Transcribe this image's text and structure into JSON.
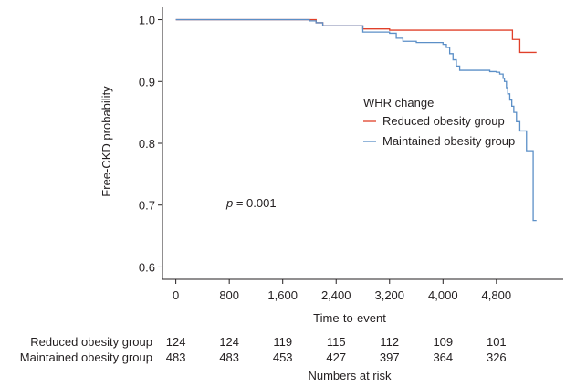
{
  "chart_data": {
    "type": "line",
    "title": "",
    "xlabel": "Time-to-event",
    "ylabel": "Free-CKD probability",
    "xlim": [
      -200,
      5800
    ],
    "ylim": [
      0.58,
      1.02
    ],
    "xticks": [
      0,
      800,
      1600,
      2400,
      3200,
      4000,
      4800
    ],
    "xtick_labels": [
      "0",
      "800",
      "1,600",
      "2,400",
      "3,200",
      "4,000",
      "4,800"
    ],
    "yticks": [
      1.0,
      0.9,
      0.8,
      0.7,
      0.6
    ],
    "ytick_labels": [
      "1.0",
      "0.9",
      "0.8",
      "0.7",
      "0.6"
    ],
    "legend_title": "WHR change",
    "legend_position": "center-right",
    "grid": false,
    "annotation": {
      "prefix": "p",
      "text": " = 0.001",
      "x": 1000,
      "y": 0.7
    },
    "series": [
      {
        "name": "Reduced obesity group",
        "color": "#e0402a",
        "step": true,
        "x": [
          0,
          2050,
          2100,
          2200,
          2300,
          2400,
          2500,
          2600,
          2700,
          2800,
          2900,
          3000,
          3100,
          3200,
          3600,
          4200,
          4800,
          5000,
          5040,
          5100,
          5150,
          5400
        ],
        "y": [
          1.0,
          1.0,
          0.995,
          0.99,
          0.99,
          0.99,
          0.99,
          0.99,
          0.99,
          0.985,
          0.985,
          0.985,
          0.985,
          0.983,
          0.983,
          0.983,
          0.983,
          0.983,
          0.968,
          0.968,
          0.947,
          0.947
        ]
      },
      {
        "name": "Maintained obesity group",
        "color": "#5b8fc7",
        "step": true,
        "x": [
          0,
          1900,
          2000,
          2100,
          2200,
          2300,
          2400,
          2600,
          2700,
          2800,
          2900,
          3100,
          3200,
          3300,
          3400,
          3500,
          3600,
          3700,
          3800,
          3900,
          4000,
          4050,
          4100,
          4150,
          4200,
          4250,
          4300,
          4400,
          4500,
          4600,
          4700,
          4800,
          4850,
          4900,
          4920,
          4950,
          4970,
          5000,
          5030,
          5060,
          5100,
          5150,
          5200,
          5250,
          5300,
          5350,
          5400
        ],
        "y": [
          1.0,
          1.0,
          0.998,
          0.995,
          0.99,
          0.99,
          0.99,
          0.99,
          0.99,
          0.98,
          0.98,
          0.98,
          0.978,
          0.97,
          0.965,
          0.965,
          0.963,
          0.963,
          0.963,
          0.963,
          0.96,
          0.955,
          0.945,
          0.935,
          0.925,
          0.918,
          0.918,
          0.918,
          0.918,
          0.918,
          0.916,
          0.915,
          0.912,
          0.905,
          0.9,
          0.89,
          0.88,
          0.87,
          0.86,
          0.85,
          0.835,
          0.82,
          0.82,
          0.788,
          0.788,
          0.675,
          0.675
        ]
      }
    ],
    "risk_table": {
      "title": "Numbers at risk",
      "rows": [
        {
          "label": "Reduced obesity group",
          "values": [
            "124",
            "124",
            "119",
            "115",
            "112",
            "109",
            "101"
          ]
        },
        {
          "label": "Maintained obesity group",
          "values": [
            "483",
            "483",
            "453",
            "427",
            "397",
            "364",
            "326"
          ]
        }
      ]
    }
  }
}
